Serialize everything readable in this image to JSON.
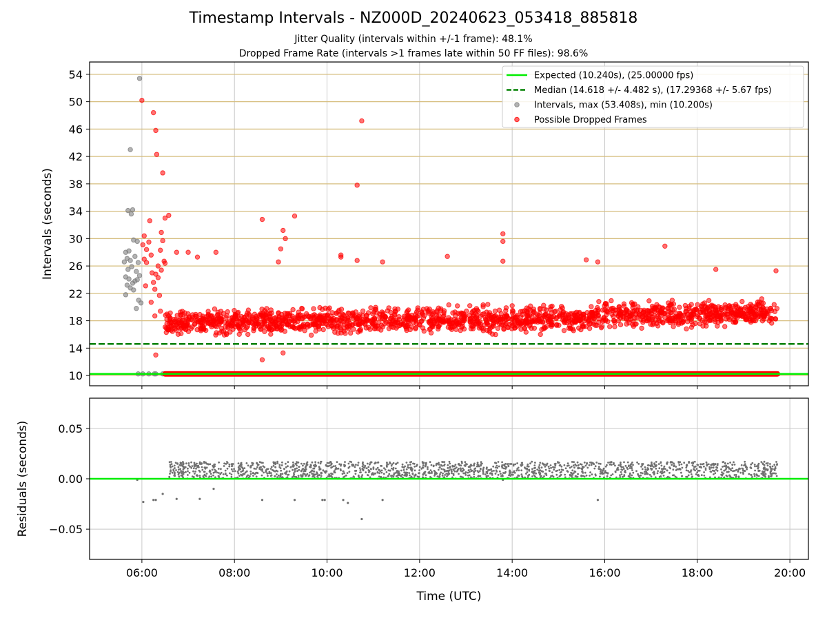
{
  "title": "Timestamp Intervals - NZ000D_20240623_053418_885818",
  "subtitle1": "Jitter Quality (intervals within +/-1 frame): 48.1%",
  "subtitle2": "Dropped Frame Rate (intervals >1 frames late within 50 FF files): 98.6%",
  "colors": {
    "expected": "#00ee00",
    "median": "#008000",
    "intervals": "#808080",
    "dropped": "#ff0000",
    "hgrid": "#d6bd7e",
    "grid": "#c8c8c8"
  },
  "chart_data": [
    {
      "type": "scatter",
      "ylabel": "Intervals (seconds)",
      "x_unit": "hours UTC",
      "xlim": [
        4.87,
        20.4
      ],
      "ylim": [
        8.5,
        55.8
      ],
      "yticks": [
        10,
        14,
        18,
        22,
        26,
        30,
        34,
        38,
        42,
        46,
        50,
        54
      ],
      "grid": true,
      "legend_position": "top-right",
      "lines": [
        {
          "name": "Expected (10.240s), (25.00000 fps)",
          "y": 10.24,
          "style": "solid"
        },
        {
          "name": "Median (14.618 +/- 4.482 s), (17.29368 +/- 5.67 fps)",
          "y": 14.618,
          "style": "dashed"
        }
      ],
      "series": [
        {
          "name": "Intervals, max (53.408s), min (10.200s)",
          "points": [
            [
              5.95,
              53.4
            ],
            [
              5.75,
              43.0
            ],
            [
              5.7,
              34.1
            ],
            [
              5.8,
              34.2
            ],
            [
              5.77,
              33.6
            ],
            [
              5.65,
              28.0
            ],
            [
              5.72,
              28.2
            ],
            [
              5.82,
              29.8
            ],
            [
              5.9,
              29.6
            ],
            [
              5.68,
              27.1
            ],
            [
              5.75,
              26.8
            ],
            [
              5.85,
              27.4
            ],
            [
              5.92,
              26.5
            ],
            [
              5.62,
              26.6
            ],
            [
              5.7,
              25.5
            ],
            [
              5.78,
              25.9
            ],
            [
              5.88,
              25.2
            ],
            [
              5.65,
              24.4
            ],
            [
              5.72,
              24.1
            ],
            [
              5.8,
              23.5
            ],
            [
              5.9,
              24.0
            ],
            [
              5.68,
              23.2
            ],
            [
              5.75,
              22.8
            ],
            [
              5.85,
              23.8
            ],
            [
              5.95,
              24.6
            ],
            [
              5.65,
              21.8
            ],
            [
              5.82,
              22.5
            ],
            [
              5.93,
              21.0
            ],
            [
              5.88,
              19.8
            ],
            [
              5.98,
              20.6
            ],
            [
              5.92,
              10.24
            ],
            [
              6.02,
              10.24
            ],
            [
              6.15,
              10.24
            ],
            [
              6.27,
              10.24
            ],
            [
              6.3,
              10.24
            ],
            [
              6.45,
              10.24
            ]
          ]
        },
        {
          "name": "Possible Dropped Frames",
          "points": [
            [
              6.0,
              50.2
            ],
            [
              6.25,
              48.4
            ],
            [
              6.3,
              45.8
            ],
            [
              6.32,
              42.3
            ],
            [
              6.45,
              39.6
            ],
            [
              10.75,
              47.2
            ],
            [
              10.65,
              37.8
            ],
            [
              6.05,
              30.4
            ],
            [
              6.02,
              29.1
            ],
            [
              6.1,
              28.4
            ],
            [
              6.15,
              29.5
            ],
            [
              6.05,
              27.0
            ],
            [
              6.1,
              26.5
            ],
            [
              6.2,
              27.6
            ],
            [
              6.17,
              32.6
            ],
            [
              6.5,
              33.0
            ],
            [
              6.58,
              33.4
            ],
            [
              6.42,
              30.9
            ],
            [
              6.45,
              29.7
            ],
            [
              6.4,
              28.3
            ],
            [
              6.48,
              26.7
            ],
            [
              6.35,
              26.0
            ],
            [
              6.42,
              25.4
            ],
            [
              6.3,
              24.8
            ],
            [
              6.22,
              25.0
            ],
            [
              6.25,
              23.6
            ],
            [
              6.35,
              24.3
            ],
            [
              6.5,
              26.4
            ],
            [
              6.28,
              22.6
            ],
            [
              6.08,
              23.1
            ],
            [
              6.38,
              21.7
            ],
            [
              6.2,
              20.7
            ],
            [
              6.4,
              19.4
            ],
            [
              6.28,
              18.7
            ],
            [
              6.3,
              13.0
            ],
            [
              6.75,
              28.0
            ],
            [
              7.0,
              28.0
            ],
            [
              7.2,
              27.3
            ],
            [
              7.6,
              28.0
            ],
            [
              8.6,
              32.8
            ],
            [
              9.05,
              31.2
            ],
            [
              9.3,
              33.3
            ],
            [
              9.1,
              30.0
            ],
            [
              9.0,
              28.5
            ],
            [
              8.95,
              26.6
            ],
            [
              10.3,
              27.6
            ],
            [
              10.3,
              27.3
            ],
            [
              10.65,
              26.8
            ],
            [
              11.2,
              26.6
            ],
            [
              12.6,
              27.4
            ],
            [
              13.8,
              30.7
            ],
            [
              13.8,
              29.6
            ],
            [
              13.8,
              26.7
            ],
            [
              15.6,
              26.9
            ],
            [
              15.85,
              26.6
            ],
            [
              17.3,
              28.9
            ],
            [
              18.4,
              25.5
            ],
            [
              19.7,
              25.3
            ],
            [
              8.6,
              12.3
            ],
            [
              9.05,
              13.3
            ]
          ],
          "band": {
            "x_start": 6.5,
            "x_end": 19.73,
            "y_low": 14.2,
            "y_high": 22.8,
            "count": 1700
          },
          "flat_line": {
            "y": 10.24,
            "x_start": 6.5,
            "x_end": 19.73
          }
        }
      ]
    },
    {
      "type": "scatter",
      "xlabel": "Time (UTC)",
      "ylabel": "Residuals (seconds)",
      "xlim": [
        4.87,
        20.4
      ],
      "ylim": [
        -0.08,
        0.08
      ],
      "yticks": [
        0.05,
        0.0,
        -0.05
      ],
      "ytick_labels": [
        "0.05",
        "0.00",
        "−0.05"
      ],
      "xticks": [
        6,
        8,
        10,
        12,
        14,
        16,
        18,
        20
      ],
      "xtick_labels": [
        "06:00",
        "08:00",
        "10:00",
        "12:00",
        "14:00",
        "16:00",
        "18:00",
        "20:00"
      ],
      "grid": true,
      "reference_y": 0.0,
      "series": [
        {
          "name": "Residuals",
          "points": [
            [
              5.9,
              -0.001
            ],
            [
              6.03,
              -0.023
            ],
            [
              6.25,
              -0.021
            ],
            [
              6.3,
              -0.021
            ],
            [
              6.45,
              -0.015
            ],
            [
              6.75,
              -0.02
            ],
            [
              7.25,
              -0.02
            ],
            [
              7.55,
              -0.01
            ],
            [
              8.6,
              -0.021
            ],
            [
              9.3,
              -0.021
            ],
            [
              9.9,
              -0.021
            ],
            [
              9.95,
              -0.021
            ],
            [
              10.35,
              -0.021
            ],
            [
              10.45,
              -0.024
            ],
            [
              10.75,
              -0.04
            ],
            [
              11.2,
              -0.021
            ],
            [
              15.85,
              -0.021
            ],
            [
              13.8,
              -0.001
            ]
          ],
          "band": {
            "x_start": 6.5,
            "x_end": 19.73,
            "y_low": 0.0,
            "y_high": 0.017,
            "count": 1700
          }
        }
      ]
    }
  ]
}
